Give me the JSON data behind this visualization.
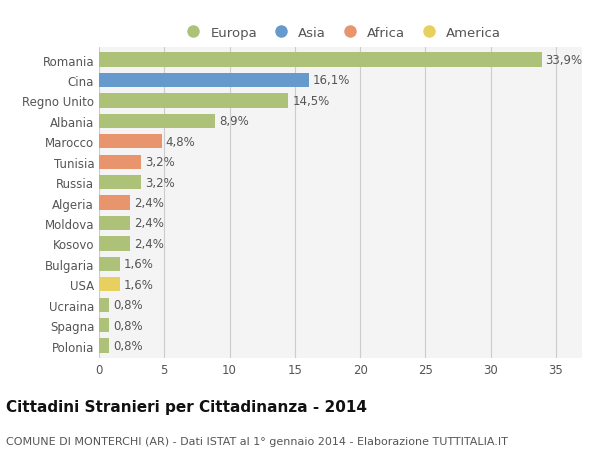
{
  "countries": [
    "Romania",
    "Cina",
    "Regno Unito",
    "Albania",
    "Marocco",
    "Tunisia",
    "Russia",
    "Algeria",
    "Moldova",
    "Kosovo",
    "Bulgaria",
    "USA",
    "Ucraina",
    "Spagna",
    "Polonia"
  ],
  "values": [
    33.9,
    16.1,
    14.5,
    8.9,
    4.8,
    3.2,
    3.2,
    2.4,
    2.4,
    2.4,
    1.6,
    1.6,
    0.8,
    0.8,
    0.8
  ],
  "continents": [
    "Europa",
    "Asia",
    "Europa",
    "Europa",
    "Africa",
    "Africa",
    "Europa",
    "Africa",
    "Europa",
    "Europa",
    "Europa",
    "America",
    "Europa",
    "Europa",
    "Europa"
  ],
  "colors": {
    "Europa": "#adc178",
    "Asia": "#6699cc",
    "Africa": "#e8956d",
    "America": "#e8d060"
  },
  "legend_order": [
    "Europa",
    "Asia",
    "Africa",
    "America"
  ],
  "title": "Cittadini Stranieri per Cittadinanza - 2014",
  "subtitle": "COMUNE DI MONTERCHI (AR) - Dati ISTAT al 1° gennaio 2014 - Elaborazione TUTTITALIA.IT",
  "xlim": [
    0,
    37
  ],
  "xticks": [
    0,
    5,
    10,
    15,
    20,
    25,
    30,
    35
  ],
  "bg_color": "#ffffff",
  "plot_bg_color": "#f4f4f4",
  "grid_color": "#cccccc",
  "bar_height": 0.7,
  "label_fontsize": 8.5,
  "title_fontsize": 11,
  "subtitle_fontsize": 8,
  "tick_fontsize": 8.5,
  "legend_fontsize": 9.5
}
